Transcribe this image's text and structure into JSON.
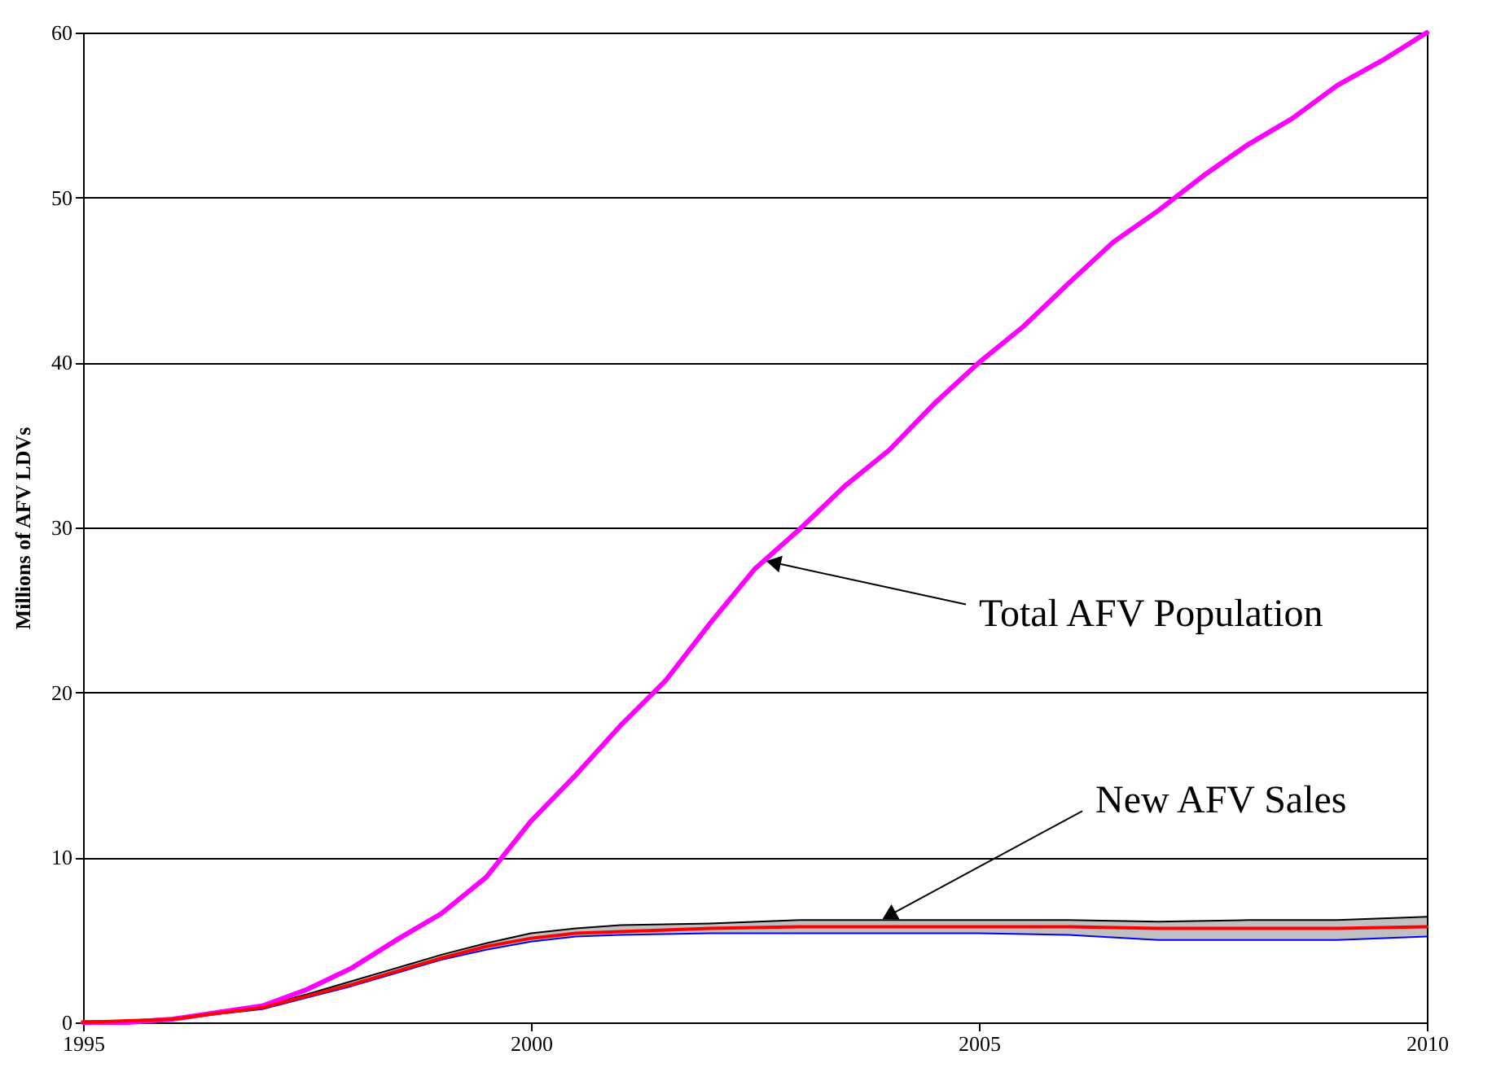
{
  "chart_data": {
    "type": "line",
    "ylabel": "Millions of AFV LDVs",
    "xlim": [
      1995,
      2010
    ],
    "xticks": [
      1995,
      2000,
      2005,
      2010
    ],
    "ylim": [
      0,
      60
    ],
    "yticks": [
      0,
      10,
      20,
      30,
      40,
      50,
      60
    ],
    "grid": "y",
    "marker": "none",
    "line_style": "solid",
    "series": [
      {
        "color": "#ff00ff",
        "x": [
          1995,
          1995.5,
          1996,
          1996.5,
          1997,
          1997.5,
          1998,
          1998.5,
          1999,
          1999.5,
          2000,
          2000.5,
          2001,
          2001.5,
          2002,
          2002.5,
          2003,
          2003.5,
          2004,
          2004.5,
          2005,
          2005.5,
          2006,
          2006.5,
          2007,
          2007.5,
          2008,
          2008.5,
          2009,
          2009.5,
          2010
        ],
        "values": [
          0,
          0,
          0.2,
          0.6,
          1.0,
          2.0,
          3.3,
          5.0,
          6.6,
          8.8,
          12.2,
          15.0,
          18.0,
          20.7,
          24.2,
          27.5,
          29.9,
          32.5,
          34.7,
          37.5,
          40.0,
          42.2,
          44.8,
          47.3,
          49.2,
          51.3,
          53.2,
          54.8,
          56.8,
          58.3,
          60.0
        ]
      },
      {
        "color": "#ff0000",
        "x": [
          1995,
          1996,
          1997,
          1997.5,
          1998,
          1998.5,
          1999,
          1999.5,
          2000,
          2000.5,
          2001,
          2002,
          2003,
          2004,
          2005,
          2006,
          2007,
          2008,
          2009,
          2010
        ],
        "values": [
          0,
          0.2,
          0.9,
          1.6,
          2.3,
          3.1,
          3.9,
          4.6,
          5.1,
          5.4,
          5.5,
          5.7,
          5.8,
          5.8,
          5.8,
          5.8,
          5.7,
          5.7,
          5.7,
          5.8
        ],
        "lower": [
          0,
          0.2,
          0.8,
          1.5,
          2.2,
          3.0,
          3.8,
          4.4,
          4.9,
          5.2,
          5.3,
          5.4,
          5.4,
          5.4,
          5.4,
          5.3,
          5.0,
          5.0,
          5.0,
          5.2
        ],
        "upper": [
          0,
          0.2,
          1.0,
          1.7,
          2.5,
          3.3,
          4.1,
          4.8,
          5.4,
          5.7,
          5.9,
          6.0,
          6.2,
          6.2,
          6.2,
          6.2,
          6.1,
          6.2,
          6.2,
          6.4
        ]
      },
      {
        "color": "#0000ff",
        "x": [
          1995,
          1996,
          1997,
          1997.5,
          1998,
          1998.5,
          1999,
          1999.5,
          2000,
          2000.5,
          2001,
          2002,
          2003,
          2004,
          2005,
          2006,
          2007,
          2008,
          2009,
          2010
        ],
        "values": [
          0,
          0.2,
          0.8,
          1.5,
          2.2,
          3.0,
          3.8,
          4.4,
          4.9,
          5.2,
          5.3,
          5.4,
          5.4,
          5.4,
          5.4,
          5.3,
          5.0,
          5.0,
          5.0,
          5.2
        ]
      },
      {
        "color": "#000000",
        "x": [
          1995,
          1996,
          1997,
          1997.5,
          1998,
          1998.5,
          1999,
          1999.5,
          2000,
          2000.5,
          2001,
          2002,
          2003,
          2004,
          2005,
          2006,
          2007,
          2008,
          2009,
          2010
        ],
        "values": [
          0,
          0.2,
          1.0,
          1.7,
          2.5,
          3.3,
          4.1,
          4.8,
          5.4,
          5.7,
          5.9,
          6.0,
          6.2,
          6.2,
          6.2,
          6.2,
          6.1,
          6.2,
          6.2,
          6.4
        ]
      }
    ],
    "annotations": [
      {
        "text": "Total AFV Population",
        "x": 2002.6,
        "y": 28
      },
      {
        "text": "New AFV Sales",
        "x": 2003.9,
        "y": 6.2
      }
    ]
  }
}
